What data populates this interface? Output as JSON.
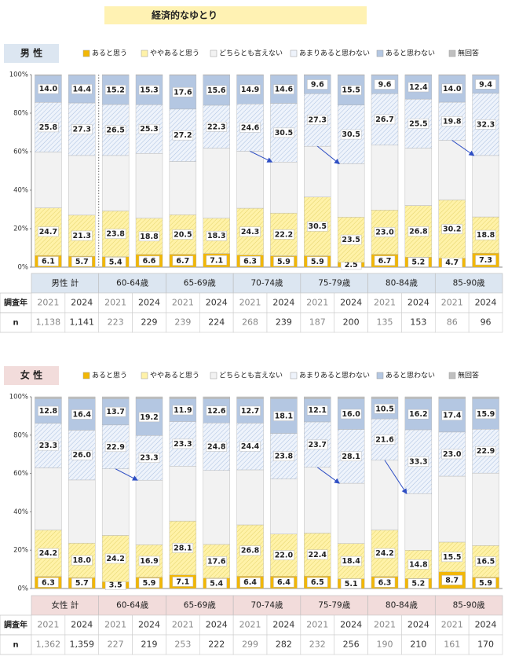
{
  "title": "経済的なゆとり",
  "chart_data": [
    {
      "type": "bar",
      "stacked": true,
      "title": "男 性",
      "header_color": "#dce6f1",
      "categories": [
        "2021",
        "2024",
        "2021",
        "2024",
        "2021",
        "2024",
        "2021",
        "2024",
        "2021",
        "2024",
        "2021",
        "2024",
        "2021",
        "2024"
      ],
      "groups": [
        "男性 計",
        "60-64歳",
        "65-69歳",
        "70-74歳",
        "75-79歳",
        "80-84歳",
        "85-90歳"
      ],
      "year_label": "調査年",
      "n_label": "n",
      "n": [
        "1,138",
        "1,141",
        "223",
        "229",
        "239",
        "224",
        "268",
        "239",
        "187",
        "200",
        "135",
        "153",
        "86",
        "96"
      ],
      "ylim": [
        0,
        100
      ],
      "yticks": [
        {
          "value": 0,
          "label": "0%"
        },
        {
          "value": 20,
          "label": "20%"
        },
        {
          "value": 40,
          "label": "40%"
        },
        {
          "value": 60,
          "label": "60%"
        },
        {
          "value": 80,
          "label": "80%"
        },
        {
          "value": 100,
          "label": "100%"
        }
      ],
      "series": [
        {
          "name": "あると思う",
          "color": "#f2b705",
          "values": [
            6.1,
            5.7,
            5.4,
            6.6,
            6.7,
            7.1,
            6.3,
            5.9,
            5.9,
            2.5,
            6.7,
            5.2,
            4.7,
            7.3
          ],
          "value_labels": [
            "6.1",
            "5.7",
            "5.4",
            "6.6",
            "6.7",
            "7.1",
            "6.3",
            "5.9",
            "5.9",
            "2.5",
            "6.7",
            "5.2",
            "4.7",
            "7.3"
          ]
        },
        {
          "name": "ややあると思う",
          "color": "#fff2a8",
          "hatch": true,
          "values": [
            24.7,
            21.3,
            23.8,
            18.8,
            20.5,
            18.3,
            24.3,
            22.2,
            30.5,
            23.5,
            23.0,
            26.8,
            30.2,
            18.8
          ],
          "value_labels": [
            "24.7",
            "21.3",
            "23.8",
            "18.8",
            "20.5",
            "18.3",
            "24.3",
            "22.2",
            "30.5",
            "23.5",
            "23.0",
            "26.8",
            "30.2",
            "18.8"
          ]
        },
        {
          "name": "どちらとも言えない",
          "color": "#f2f2f2",
          "values": [
            29.0,
            31.0,
            28.8,
            33.7,
            27.7,
            36.4,
            29.6,
            26.5,
            26.4,
            27.7,
            33.7,
            29.8,
            31.0,
            31.9
          ]
        },
        {
          "name": "あまりあると思わない",
          "color": "#eef3fb",
          "hatch": true,
          "values": [
            25.8,
            27.3,
            26.5,
            25.3,
            27.2,
            22.3,
            24.6,
            30.5,
            27.3,
            30.5,
            26.7,
            25.5,
            19.8,
            32.3
          ],
          "value_labels": [
            "25.8",
            "27.3",
            "26.5",
            "25.3",
            "27.2",
            "22.3",
            "24.6",
            "30.5",
            "27.3",
            "30.5",
            "26.7",
            "25.5",
            "19.8",
            "32.3"
          ]
        },
        {
          "name": "あると思わない",
          "color": "#b4c7e2",
          "values": [
            14.0,
            14.4,
            15.2,
            15.3,
            17.6,
            15.6,
            14.9,
            14.6,
            9.6,
            15.5,
            9.6,
            12.4,
            14.0,
            9.4
          ],
          "value_labels": [
            "14.0",
            "14.4",
            "15.2",
            "15.3",
            "17.6",
            "15.6",
            "14.9",
            "14.6",
            "9.6",
            "15.5",
            "9.6",
            "12.4",
            "14.0",
            "9.4"
          ]
        },
        {
          "name": "無回答",
          "color": "#bfbfbf",
          "values": [
            0.4,
            0.3,
            0.3,
            0.3,
            0.3,
            0.3,
            0.3,
            0.3,
            0.3,
            0.3,
            0.3,
            0.3,
            0.3,
            0.3
          ]
        }
      ]
    },
    {
      "type": "bar",
      "stacked": true,
      "title": "女 性",
      "header_color": "#f2dcdb",
      "categories": [
        "2021",
        "2024",
        "2021",
        "2024",
        "2021",
        "2024",
        "2021",
        "2024",
        "2021",
        "2024",
        "2021",
        "2024",
        "2021",
        "2024"
      ],
      "groups": [
        "女性 計",
        "60-64歳",
        "65-69歳",
        "70-74歳",
        "75-79歳",
        "80-84歳",
        "85-90歳"
      ],
      "year_label": "調査年",
      "n_label": "n",
      "n": [
        "1,362",
        "1,359",
        "227",
        "219",
        "253",
        "222",
        "299",
        "282",
        "232",
        "256",
        "190",
        "210",
        "161",
        "170"
      ],
      "ylim": [
        0,
        100
      ],
      "yticks": [
        {
          "value": 0,
          "label": "0%"
        },
        {
          "value": 20,
          "label": "20%"
        },
        {
          "value": 40,
          "label": "40%"
        },
        {
          "value": 60,
          "label": "60%"
        },
        {
          "value": 80,
          "label": "80%"
        },
        {
          "value": 100,
          "label": "100%"
        }
      ],
      "series": [
        {
          "name": "あると思う",
          "color": "#f2b705",
          "values": [
            6.3,
            5.7,
            3.5,
            5.9,
            7.1,
            5.4,
            6.4,
            6.4,
            6.5,
            5.1,
            6.3,
            5.2,
            8.7,
            5.9
          ],
          "value_labels": [
            "6.3",
            "5.7",
            "3.5",
            "5.9",
            "7.1",
            "5.4",
            "6.4",
            "6.4",
            "6.5",
            "5.1",
            "6.3",
            "5.2",
            "8.7",
            "5.9"
          ]
        },
        {
          "name": "ややあると思う",
          "color": "#fff2a8",
          "hatch": true,
          "values": [
            24.2,
            18.0,
            24.2,
            16.9,
            28.1,
            17.6,
            26.8,
            22.0,
            22.4,
            18.4,
            24.2,
            14.8,
            15.5,
            16.5
          ],
          "value_labels": [
            "24.2",
            "18.0",
            "24.2",
            "16.9",
            "28.1",
            "17.6",
            "26.8",
            "22.0",
            "22.4",
            "18.4",
            "24.2",
            "14.8",
            "15.5",
            "16.5"
          ]
        },
        {
          "name": "どちらとも言えない",
          "color": "#f2f2f2",
          "values": [
            32.4,
            32.9,
            34.7,
            33.7,
            28.6,
            38.6,
            28.7,
            28.7,
            34.3,
            31.4,
            36.4,
            29.5,
            34.4,
            37.8
          ]
        },
        {
          "name": "あまりあると思わない",
          "color": "#eef3fb",
          "hatch": true,
          "values": [
            23.3,
            26.0,
            22.9,
            23.3,
            23.3,
            24.8,
            24.4,
            23.8,
            23.7,
            28.1,
            21.6,
            33.3,
            23.0,
            22.9
          ],
          "value_labels": [
            "23.3",
            "26.0",
            "22.9",
            "23.3",
            "23.3",
            "24.8",
            "24.4",
            "23.8",
            "23.7",
            "28.1",
            "21.6",
            "33.3",
            "23.0",
            "22.9"
          ]
        },
        {
          "name": "あると思わない",
          "color": "#b4c7e2",
          "values": [
            12.8,
            16.4,
            13.7,
            19.2,
            11.9,
            12.6,
            12.7,
            18.1,
            12.1,
            16.0,
            10.5,
            16.2,
            17.4,
            15.9
          ],
          "value_labels": [
            "12.8",
            "16.4",
            "13.7",
            "19.2",
            "11.9",
            "12.6",
            "12.7",
            "18.1",
            "12.1",
            "16.0",
            "10.5",
            "16.2",
            "17.4",
            "15.9"
          ]
        },
        {
          "name": "無回答",
          "color": "#bfbfbf",
          "values": [
            1.0,
            1.0,
            1.0,
            1.0,
            1.0,
            1.0,
            1.0,
            1.0,
            1.0,
            1.0,
            1.0,
            1.0,
            1.0,
            1.0
          ]
        }
      ]
    }
  ]
}
